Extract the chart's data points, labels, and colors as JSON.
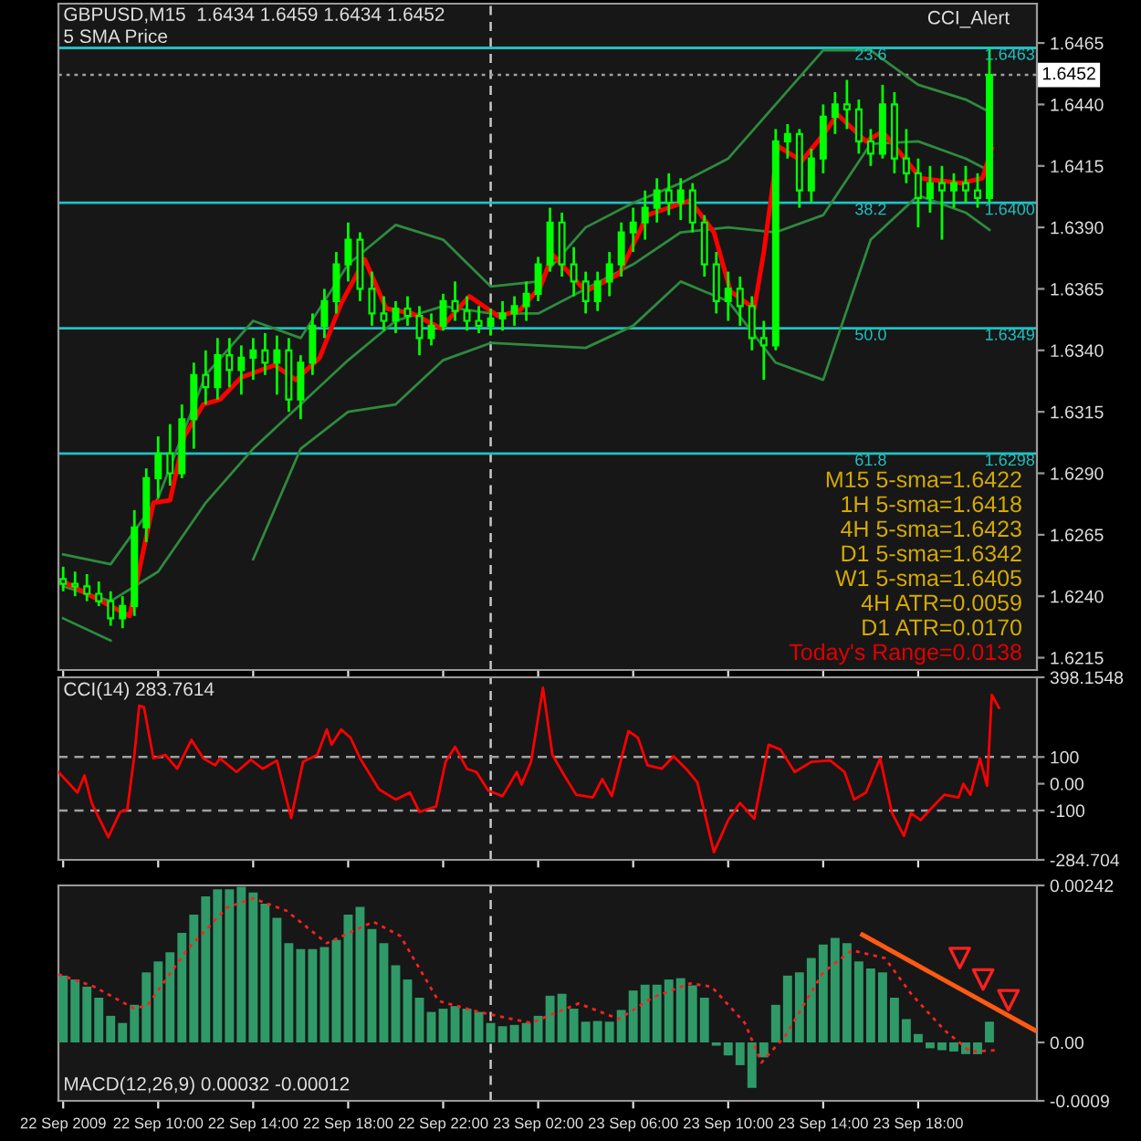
{
  "chart_data": [
    {
      "type": "candlestick",
      "title": "GBPUSD,M15  1.6434 1.6459 1.6434 1.6452",
      "subtitle": "5 SMA Price",
      "color": "#00ff00",
      "annotations": [
        "CCI_Alert",
        "M15 5-sma=1.6422",
        "1H 5-sma=1.6418",
        "4H 5-sma=1.6423",
        "D1 5-sma=1.6342",
        "W1 5-sma=1.6405",
        "4H ATR=0.0059",
        "D1 ATR=0.0170",
        "Today's Range=0.0138",
        {
          "text": "23.6",
          "x": "2009-09-23T16:00",
          "y": 1.6463
        },
        {
          "text": "38.2",
          "x": "2009-09-23T16:00",
          "y": 1.64
        },
        {
          "text": "50.0",
          "x": "2009-09-23T16:00",
          "y": 1.6349
        },
        {
          "text": "61.8",
          "x": "2009-09-23T16:00",
          "y": 1.6298
        }
      ],
      "x": [
        "2009-09-22T06:00",
        "2009-09-22T06:30",
        "2009-09-22T07:00",
        "2009-09-22T07:30",
        "2009-09-22T08:00",
        "2009-09-22T08:30",
        "2009-09-22T09:00",
        "2009-09-22T09:30",
        "2009-09-22T10:00",
        "2009-09-22T10:30",
        "2009-09-22T11:00",
        "2009-09-22T11:30",
        "2009-09-22T12:00",
        "2009-09-22T12:30",
        "2009-09-22T13:00",
        "2009-09-22T13:30",
        "2009-09-22T14:00",
        "2009-09-22T14:30",
        "2009-09-22T15:00",
        "2009-09-22T15:30",
        "2009-09-22T16:00",
        "2009-09-22T16:30",
        "2009-09-22T17:00",
        "2009-09-22T17:30",
        "2009-09-22T18:00",
        "2009-09-22T18:30",
        "2009-09-22T19:00",
        "2009-09-22T19:30",
        "2009-09-22T20:00",
        "2009-09-22T20:30",
        "2009-09-22T21:00",
        "2009-09-22T21:30",
        "2009-09-22T22:00",
        "2009-09-22T22:30",
        "2009-09-22T23:00",
        "2009-09-22T23:30",
        "2009-09-23T00:00",
        "2009-09-23T00:30",
        "2009-09-23T01:00",
        "2009-09-23T01:30",
        "2009-09-23T02:00",
        "2009-09-23T02:30",
        "2009-09-23T03:00",
        "2009-09-23T03:30",
        "2009-09-23T04:00",
        "2009-09-23T04:30",
        "2009-09-23T05:00",
        "2009-09-23T05:30",
        "2009-09-23T06:00",
        "2009-09-23T06:30",
        "2009-09-23T07:00",
        "2009-09-23T07:30",
        "2009-09-23T08:00",
        "2009-09-23T08:30",
        "2009-09-23T09:00",
        "2009-09-23T09:30",
        "2009-09-23T10:00",
        "2009-09-23T10:30",
        "2009-09-23T11:00",
        "2009-09-23T11:30",
        "2009-09-23T12:00",
        "2009-09-23T12:30",
        "2009-09-23T13:00",
        "2009-09-23T13:30",
        "2009-09-23T14:00",
        "2009-09-23T14:30",
        "2009-09-23T15:00",
        "2009-09-23T15:30",
        "2009-09-23T16:00",
        "2009-09-23T16:30",
        "2009-09-23T17:00",
        "2009-09-23T17:30",
        "2009-09-23T18:00",
        "2009-09-23T18:30",
        "2009-09-23T19:00",
        "2009-09-23T19:30",
        "2009-09-23T20:00",
        "2009-09-23T20:30",
        "2009-09-23T21:00"
      ],
      "ohlc": [
        [
          1.6247,
          1.6252,
          1.6242,
          1.6245
        ],
        [
          1.6245,
          1.625,
          1.624,
          1.6244
        ],
        [
          1.6244,
          1.6249,
          1.6238,
          1.6241
        ],
        [
          1.6241,
          1.6246,
          1.6236,
          1.6238
        ],
        [
          1.6238,
          1.6242,
          1.6228,
          1.6231
        ],
        [
          1.6231,
          1.624,
          1.6227,
          1.6236
        ],
        [
          1.6236,
          1.6275,
          1.6232,
          1.6268
        ],
        [
          1.6268,
          1.6292,
          1.6262,
          1.6288
        ],
        [
          1.6288,
          1.6305,
          1.628,
          1.6298
        ],
        [
          1.6298,
          1.631,
          1.6285,
          1.629
        ],
        [
          1.629,
          1.6318,
          1.6288,
          1.6312
        ],
        [
          1.6312,
          1.6335,
          1.63,
          1.633
        ],
        [
          1.633,
          1.634,
          1.6318,
          1.6325
        ],
        [
          1.6325,
          1.6345,
          1.632,
          1.6338
        ],
        [
          1.6338,
          1.6345,
          1.6325,
          1.6332
        ],
        [
          1.6332,
          1.6342,
          1.6322,
          1.6337
        ],
        [
          1.6337,
          1.6345,
          1.6328,
          1.634
        ],
        [
          1.634,
          1.6347,
          1.633,
          1.6335
        ],
        [
          1.6335,
          1.6346,
          1.6322,
          1.634
        ],
        [
          1.634,
          1.6345,
          1.6315,
          1.632
        ],
        [
          1.632,
          1.6338,
          1.6312,
          1.6335
        ],
        [
          1.6335,
          1.6355,
          1.633,
          1.635
        ],
        [
          1.635,
          1.6365,
          1.6345,
          1.636
        ],
        [
          1.636,
          1.638,
          1.6355,
          1.6375
        ],
        [
          1.6375,
          1.6392,
          1.6368,
          1.6385
        ],
        [
          1.6385,
          1.6388,
          1.636,
          1.6365
        ],
        [
          1.6365,
          1.6372,
          1.635,
          1.6355
        ],
        [
          1.6355,
          1.6362,
          1.6348,
          1.6352
        ],
        [
          1.6352,
          1.636,
          1.6347,
          1.6357
        ],
        [
          1.6357,
          1.6362,
          1.635,
          1.6354
        ],
        [
          1.6354,
          1.6358,
          1.6338,
          1.6345
        ],
        [
          1.6345,
          1.6355,
          1.6342,
          1.635
        ],
        [
          1.635,
          1.6363,
          1.6348,
          1.636
        ],
        [
          1.636,
          1.6368,
          1.6352,
          1.6356
        ],
        [
          1.6356,
          1.6362,
          1.6348,
          1.6352
        ],
        [
          1.6352,
          1.6358,
          1.6347,
          1.635
        ],
        [
          1.635,
          1.6357,
          1.6346,
          1.6353
        ],
        [
          1.6353,
          1.636,
          1.6348,
          1.6355
        ],
        [
          1.6355,
          1.6362,
          1.635,
          1.6358
        ],
        [
          1.6358,
          1.6368,
          1.6352,
          1.6363
        ],
        [
          1.6363,
          1.6378,
          1.636,
          1.6375
        ],
        [
          1.6375,
          1.6398,
          1.6372,
          1.6392
        ],
        [
          1.6392,
          1.6396,
          1.637,
          1.6375
        ],
        [
          1.6375,
          1.6382,
          1.6362,
          1.6368
        ],
        [
          1.6368,
          1.6372,
          1.6355,
          1.636
        ],
        [
          1.636,
          1.6372,
          1.6356,
          1.6368
        ],
        [
          1.6368,
          1.638,
          1.6362,
          1.6375
        ],
        [
          1.6375,
          1.6392,
          1.637,
          1.6388
        ],
        [
          1.6388,
          1.6398,
          1.638,
          1.6392
        ],
        [
          1.6392,
          1.6405,
          1.6385,
          1.6398
        ],
        [
          1.6398,
          1.641,
          1.6392,
          1.6405
        ],
        [
          1.6405,
          1.6412,
          1.6395,
          1.64
        ],
        [
          1.64,
          1.641,
          1.6393,
          1.6405
        ],
        [
          1.6405,
          1.6408,
          1.6388,
          1.6392
        ],
        [
          1.6392,
          1.6395,
          1.637,
          1.6375
        ],
        [
          1.6375,
          1.638,
          1.6355,
          1.636
        ],
        [
          1.636,
          1.6372,
          1.6352,
          1.6365
        ],
        [
          1.6365,
          1.637,
          1.635,
          1.6358
        ],
        [
          1.6358,
          1.6362,
          1.634,
          1.6345
        ],
        [
          1.6345,
          1.6352,
          1.6328,
          1.6342
        ],
        [
          1.6342,
          1.643,
          1.634,
          1.6425
        ],
        [
          1.6425,
          1.6432,
          1.6418,
          1.6428
        ],
        [
          1.6428,
          1.643,
          1.6398,
          1.6405
        ],
        [
          1.6405,
          1.6422,
          1.64,
          1.6418
        ],
        [
          1.6418,
          1.644,
          1.6412,
          1.6435
        ],
        [
          1.6435,
          1.6445,
          1.6428,
          1.644
        ],
        [
          1.644,
          1.645,
          1.643,
          1.6438
        ],
        [
          1.6438,
          1.6442,
          1.642,
          1.6425
        ],
        [
          1.6425,
          1.643,
          1.6415,
          1.642
        ],
        [
          1.642,
          1.6448,
          1.6418,
          1.644
        ],
        [
          1.644,
          1.6445,
          1.6412,
          1.6418
        ],
        [
          1.6418,
          1.643,
          1.6408,
          1.6412
        ],
        [
          1.6412,
          1.6418,
          1.639,
          1.6402
        ],
        [
          1.6402,
          1.6415,
          1.6396,
          1.6408
        ],
        [
          1.6408,
          1.6415,
          1.6385,
          1.6405
        ],
        [
          1.6405,
          1.6412,
          1.6398,
          1.6408
        ],
        [
          1.6408,
          1.6415,
          1.64,
          1.6405
        ],
        [
          1.6405,
          1.6412,
          1.6398,
          1.6402
        ],
        [
          1.6402,
          1.6463,
          1.64,
          1.6452
        ]
      ],
      "series": [
        {
          "type": "line",
          "color": "#2e8b3e",
          "x": [
            "2009-09-22T06:00",
            "2009-09-22T08:00",
            "2009-09-22T10:00",
            "2009-09-22T12:00",
            "2009-09-22T14:00",
            "2009-09-22T16:00",
            "2009-09-22T18:00",
            "2009-09-22T20:00",
            "2009-09-22T22:00",
            "2009-09-23T00:00",
            "2009-09-23T02:00",
            "2009-09-23T04:00",
            "2009-09-23T06:00",
            "2009-09-23T08:00",
            "2009-09-23T10:00",
            "2009-09-23T12:00",
            "2009-09-23T14:00",
            "2009-09-23T16:00",
            "2009-09-23T18:00",
            "2009-09-23T20:00",
            "2009-09-23T21:00"
          ],
          "values": [
            1.6257,
            1.6253,
            1.628,
            1.633,
            1.6352,
            1.6345,
            1.6375,
            1.6391,
            1.6385,
            1.6366,
            1.6368,
            1.639,
            1.64,
            1.6408,
            1.6418,
            1.644,
            1.6462,
            1.6462,
            1.6448,
            1.6442,
            1.6437
          ]
        },
        {
          "type": "line",
          "color": "#2e8b3e",
          "x": [
            "2009-09-22T06:00",
            "2009-09-22T08:00",
            "2009-09-22T10:00",
            "2009-09-22T12:00",
            "2009-09-22T14:00",
            "2009-09-22T16:00",
            "2009-09-22T18:00",
            "2009-09-22T20:00",
            "2009-09-22T22:00",
            "2009-09-23T00:00",
            "2009-09-23T02:00",
            "2009-09-23T04:00",
            "2009-09-23T06:00",
            "2009-09-23T08:00",
            "2009-09-23T10:00",
            "2009-09-23T12:00",
            "2009-09-23T14:00",
            "2009-09-23T16:00",
            "2009-09-23T18:00",
            "2009-09-23T20:00",
            "2009-09-23T21:00"
          ],
          "values": [
            1.6244,
            1.6238,
            1.625,
            1.6278,
            1.63,
            1.6318,
            1.6336,
            1.6352,
            1.6358,
            1.6355,
            1.6355,
            1.6365,
            1.6375,
            1.6388,
            1.639,
            1.6388,
            1.6395,
            1.6424,
            1.6425,
            1.6418,
            1.6413
          ]
        },
        {
          "type": "line",
          "color": "#2e8b3e",
          "x": [
            "2009-09-22T06:00",
            "2009-09-22T08:00",
            "2009-09-22T10:00",
            "2009-09-22T12:00",
            "2009-09-22T14:00",
            "2009-09-22T16:00",
            "2009-09-22T18:00",
            "2009-09-22T20:00",
            "2009-09-22T22:00",
            "2009-09-23T00:00",
            "2009-09-23T02:00",
            "2009-09-23T04:00",
            "2009-09-23T06:00",
            "2009-09-23T08:00",
            "2009-09-23T10:00",
            "2009-09-23T12:00",
            "2009-09-23T14:00",
            "2009-09-23T16:00",
            "2009-09-23T18:00",
            "2009-09-23T20:00",
            "2009-09-23T21:00"
          ],
          "values": [
            1.6231,
            1.6222,
            null,
            null,
            1.6255,
            1.63,
            1.6315,
            1.6318,
            1.6336,
            1.6343,
            1.6342,
            1.6341,
            1.635,
            1.6368,
            1.636,
            1.6335,
            1.6328,
            1.6385,
            1.6403,
            1.6396,
            1.6389
          ]
        },
        {
          "type": "line",
          "color": "#ff0000",
          "x": [
            "2009-09-22T06:00",
            "2009-09-22T08:48",
            "2009-09-22T09:48",
            "2009-09-22T10:30",
            "2009-09-22T11:06",
            "2009-09-22T11:54",
            "2009-09-22T12:36",
            "2009-09-22T13:30",
            "2009-09-22T14:54",
            "2009-09-22T15:48",
            "2009-09-22T16:48",
            "2009-09-22T17:42",
            "2009-09-22T18:42",
            "2009-09-22T19:36",
            "2009-09-22T20:42",
            "2009-09-22T21:54",
            "2009-09-22T23:06",
            "2009-09-23T00:18",
            "2009-09-23T01:12",
            "2009-09-23T02:06",
            "2009-09-23T02:36",
            "2009-09-23T04:00",
            "2009-09-23T05:24",
            "2009-09-23T06:36",
            "2009-09-23T08:24",
            "2009-09-23T09:24",
            "2009-09-23T10:06",
            "2009-09-23T11:06",
            "2009-09-23T11:30",
            "2009-09-23T12:06",
            "2009-09-23T13:06",
            "2009-09-23T14:06",
            "2009-09-23T14:36",
            "2009-09-23T15:48",
            "2009-09-23T16:30",
            "2009-09-23T17:36",
            "2009-09-23T18:06",
            "2009-09-23T19:48",
            "2009-09-23T20:42",
            "2009-09-23T21:06"
          ],
          "values": [
            1.6246,
            1.6232,
            1.6278,
            1.6279,
            1.6305,
            1.6318,
            1.632,
            1.6329,
            1.6334,
            1.6328,
            1.6337,
            1.6359,
            1.6377,
            1.6357,
            1.6355,
            1.6349,
            1.6362,
            1.6354,
            1.6356,
            1.6366,
            1.6379,
            1.6364,
            1.6371,
            1.6395,
            1.6401,
            1.6388,
            1.6364,
            1.6357,
            1.638,
            1.6423,
            1.6417,
            1.6429,
            1.6436,
            1.6425,
            1.6429,
            1.6416,
            1.641,
            1.6408,
            1.641,
            1.6422
          ]
        }
      ],
      "ref_lines": [
        {
          "axis": "x",
          "value": "2009-09-23T00:00",
          "line_style": "dashed",
          "color": "#c8c8c8"
        },
        {
          "axis": "y",
          "value": 1.6463,
          "label": "1.6463",
          "color": "#20c0c0"
        },
        {
          "axis": "y",
          "value": 1.64,
          "label": "1.6400",
          "color": "#20c0c0"
        },
        {
          "axis": "y",
          "value": 1.6349,
          "label": "1.6349",
          "color": "#20c0c0"
        },
        {
          "axis": "y",
          "value": 1.6298,
          "label": "1.6298",
          "color": "#20c0c0"
        },
        {
          "axis": "y",
          "value": 1.6452,
          "label": "1.6452",
          "line_style": "dotted",
          "color": "#a0a0a0"
        }
      ],
      "xlim": [
        "2009-09-22T05:48",
        "2009-09-23T23:00"
      ],
      "xticks": [
        "2009-09-22T06:00",
        "2009-09-22T10:00",
        "2009-09-22T14:00",
        "2009-09-22T18:00",
        "2009-09-22T22:00",
        "2009-09-23T02:00",
        "2009-09-23T06:00",
        "2009-09-23T10:00",
        "2009-09-23T14:00",
        "2009-09-23T18:00"
      ],
      "ylim": [
        1.621,
        1.6481
      ],
      "yticks": [
        {
          "value": 1.6215,
          "label": "1.6215"
        },
        {
          "value": 1.624,
          "label": "1.6240"
        },
        {
          "value": 1.6265,
          "label": "1.6265"
        },
        {
          "value": 1.629,
          "label": "1.6290"
        },
        {
          "value": 1.6315,
          "label": "1.6315"
        },
        {
          "value": 1.634,
          "label": "1.6340"
        },
        {
          "value": 1.6365,
          "label": "1.6365"
        },
        {
          "value": 1.639,
          "label": "1.6390"
        },
        {
          "value": 1.6415,
          "label": "1.6415"
        },
        {
          "value": 1.644,
          "label": "1.6440"
        },
        {
          "value": 1.6465,
          "label": "1.6465"
        }
      ],
      "tick_labels": "y"
    },
    {
      "type": "line",
      "title": "CCI(14) 283.7614",
      "color": "#ff0000",
      "x": [
        "2009-09-22T05:48",
        "2009-09-22T06:36",
        "2009-09-22T06:54",
        "2009-09-22T07:12",
        "2009-09-22T07:54",
        "2009-09-22T08:24",
        "2009-09-22T08:42",
        "2009-09-22T09:00",
        "2009-09-22T09:12",
        "2009-09-22T09:24",
        "2009-09-22T09:48",
        "2009-09-22T10:18",
        "2009-09-22T10:48",
        "2009-09-22T11:24",
        "2009-09-22T11:54",
        "2009-09-22T12:24",
        "2009-09-22T12:36",
        "2009-09-22T13:18",
        "2009-09-22T13:54",
        "2009-09-22T14:24",
        "2009-09-22T15:00",
        "2009-09-22T15:36",
        "2009-09-22T16:06",
        "2009-09-22T16:42",
        "2009-09-22T17:06",
        "2009-09-22T17:18",
        "2009-09-22T17:42",
        "2009-09-22T18:06",
        "2009-09-22T18:30",
        "2009-09-22T19:18",
        "2009-09-22T20:00",
        "2009-09-22T20:36",
        "2009-09-22T21:00",
        "2009-09-22T21:42",
        "2009-09-22T22:06",
        "2009-09-22T22:30",
        "2009-09-22T23:00",
        "2009-09-22T23:24",
        "2009-09-22T23:54",
        "2009-09-23T00:30",
        "2009-09-23T01:06",
        "2009-09-23T01:18",
        "2009-09-23T01:42",
        "2009-09-23T02:12",
        "2009-09-23T02:36",
        "2009-09-23T03:06",
        "2009-09-23T03:36",
        "2009-09-23T04:18",
        "2009-09-23T04:42",
        "2009-09-23T05:06",
        "2009-09-23T05:48",
        "2009-09-23T06:12",
        "2009-09-23T06:36",
        "2009-09-23T07:12",
        "2009-09-23T07:42",
        "2009-09-23T08:18",
        "2009-09-23T08:42",
        "2009-09-23T09:24",
        "2009-09-23T10:00",
        "2009-09-23T10:30",
        "2009-09-23T11:06",
        "2009-09-23T11:42",
        "2009-09-23T12:12",
        "2009-09-23T12:48",
        "2009-09-23T13:30",
        "2009-09-23T14:18",
        "2009-09-23T14:54",
        "2009-09-23T15:18",
        "2009-09-23T15:48",
        "2009-09-23T16:24",
        "2009-09-23T16:54",
        "2009-09-23T17:24",
        "2009-09-23T17:42",
        "2009-09-23T18:06",
        "2009-09-23T18:30",
        "2009-09-23T19:06",
        "2009-09-23T19:42",
        "2009-09-23T19:54",
        "2009-09-23T20:12",
        "2009-09-23T20:36",
        "2009-09-23T20:54",
        "2009-09-23T21:06",
        "2009-09-23T21:24"
      ],
      "values": [
        44,
        -33,
        31,
        -72,
        -200,
        -105,
        -97,
        108,
        292,
        287,
        95,
        108,
        56,
        164,
        95,
        69,
        95,
        44,
        90,
        56,
        87,
        -128,
        82,
        108,
        203,
        146,
        203,
        172,
        95,
        -21,
        -59,
        -33,
        -105,
        -85,
        82,
        138,
        56,
        44,
        -26,
        -46,
        44,
        -3,
        82,
        359,
        108,
        31,
        -41,
        -51,
        18,
        -46,
        197,
        172,
        69,
        56,
        103,
        49,
        5,
        -256,
        -136,
        -72,
        -131,
        146,
        128,
        44,
        82,
        87,
        44,
        -59,
        -33,
        95,
        -110,
        -195,
        -110,
        -136,
        -97,
        -41,
        -51,
        0,
        -41,
        95,
        -8,
        333,
        284
      ],
      "ref_lines": [
        {
          "axis": "x",
          "value": "2009-09-23T00:00",
          "line_style": "dashed",
          "color": "#c8c8c8"
        },
        {
          "axis": "y",
          "value": 100,
          "line_style": "dashed",
          "color": "#a0a0a0"
        },
        {
          "axis": "y",
          "value": -100,
          "line_style": "dashed",
          "color": "#a0a0a0"
        }
      ],
      "xlim": [
        "2009-09-22T05:48",
        "2009-09-23T23:00"
      ],
      "xticks": [
        "2009-09-22T06:00",
        "2009-09-22T10:00",
        "2009-09-22T14:00",
        "2009-09-22T18:00",
        "2009-09-22T22:00",
        "2009-09-23T02:00",
        "2009-09-23T06:00",
        "2009-09-23T10:00",
        "2009-09-23T14:00",
        "2009-09-23T18:00"
      ],
      "ylim": [
        -284.704,
        398.1548
      ],
      "yticks": [
        398.1548,
        100,
        {
          "value": 0,
          "label": "0.00"
        },
        -100,
        -284.704
      ],
      "tick_labels": "y"
    },
    {
      "type": "bar",
      "title": "MACD(12,26,9) 0.00032 -0.00012",
      "series": [
        {
          "type": "bar",
          "color": "#2f9a68",
          "x": [
            "2009-09-22T06:00",
            "2009-09-22T06:30",
            "2009-09-22T07:00",
            "2009-09-22T07:30",
            "2009-09-22T08:00",
            "2009-09-22T08:30",
            "2009-09-22T09:00",
            "2009-09-22T09:30",
            "2009-09-22T10:00",
            "2009-09-22T10:30",
            "2009-09-22T11:00",
            "2009-09-22T11:30",
            "2009-09-22T12:00",
            "2009-09-22T12:30",
            "2009-09-22T13:00",
            "2009-09-22T13:30",
            "2009-09-22T14:00",
            "2009-09-22T14:30",
            "2009-09-22T15:00",
            "2009-09-22T15:30",
            "2009-09-22T16:00",
            "2009-09-22T16:30",
            "2009-09-22T17:00",
            "2009-09-22T17:30",
            "2009-09-22T18:00",
            "2009-09-22T18:30",
            "2009-09-22T19:00",
            "2009-09-22T19:30",
            "2009-09-22T20:00",
            "2009-09-22T20:30",
            "2009-09-22T21:00",
            "2009-09-22T21:30",
            "2009-09-22T22:00",
            "2009-09-22T22:30",
            "2009-09-22T23:00",
            "2009-09-22T23:30",
            "2009-09-23T00:00",
            "2009-09-23T00:30",
            "2009-09-23T01:00",
            "2009-09-23T01:30",
            "2009-09-23T02:00",
            "2009-09-23T02:30",
            "2009-09-23T03:00",
            "2009-09-23T03:30",
            "2009-09-23T04:00",
            "2009-09-23T04:30",
            "2009-09-23T05:00",
            "2009-09-23T05:30",
            "2009-09-23T06:00",
            "2009-09-23T06:30",
            "2009-09-23T07:00",
            "2009-09-23T07:30",
            "2009-09-23T08:00",
            "2009-09-23T08:30",
            "2009-09-23T09:00",
            "2009-09-23T09:30",
            "2009-09-23T10:00",
            "2009-09-23T10:30",
            "2009-09-23T11:00",
            "2009-09-23T11:30",
            "2009-09-23T12:00",
            "2009-09-23T12:30",
            "2009-09-23T13:00",
            "2009-09-23T13:30",
            "2009-09-23T14:00",
            "2009-09-23T14:30",
            "2009-09-23T15:00",
            "2009-09-23T15:30",
            "2009-09-23T16:00",
            "2009-09-23T16:30",
            "2009-09-23T17:00",
            "2009-09-23T17:30",
            "2009-09-23T18:00",
            "2009-09-23T18:30",
            "2009-09-23T19:00",
            "2009-09-23T19:30",
            "2009-09-23T20:00",
            "2009-09-23T20:30",
            "2009-09-23T21:00"
          ],
          "values": [
            0.00103,
            0.00097,
            0.00086,
            0.00069,
            0.00041,
            0.0003,
            0.00058,
            0.00108,
            0.00125,
            0.00139,
            0.00169,
            0.00197,
            0.00225,
            0.00236,
            0.00236,
            0.0024,
            0.00231,
            0.00214,
            0.00192,
            0.00153,
            0.00144,
            0.00144,
            0.00147,
            0.00158,
            0.00197,
            0.00209,
            0.00175,
            0.00153,
            0.00119,
            0.00097,
            0.00069,
            0.00047,
            0.00052,
            0.00056,
            0.00052,
            0.00047,
            0.0003,
            0.00025,
            0.00027,
            0.0003,
            0.00041,
            0.00072,
            0.00075,
            0.00052,
            0.00032,
            0.00033,
            0.00032,
            0.0005,
            0.0008,
            0.00089,
            0.00089,
            0.00097,
            0.00099,
            0.00088,
            0.00069,
            -5e-05,
            -0.0002,
            -0.00035,
            -0.0007,
            -0.00023,
            0.00058,
            0.00103,
            0.00108,
            0.0013,
            0.00151,
            0.00161,
            0.00153,
            0.00125,
            0.00114,
            0.00108,
            0.00069,
            0.00036,
            0.00013,
            -9e-05,
            -0.00012,
            -0.00014,
            -0.00018,
            -0.00018,
            0.00032
          ]
        },
        {
          "type": "line",
          "color": "#ff2020",
          "line_style": "dotted",
          "x": [
            "2009-09-22T05:48",
            "2009-09-22T07:18",
            "2009-09-22T09:00",
            "2009-09-22T09:34",
            "2009-09-22T11:12",
            "2009-09-22T12:54",
            "2009-09-22T14:00",
            "2009-09-22T15:24",
            "2009-09-22T17:06",
            "2009-09-22T19:03",
            "2009-09-22T20:12",
            "2009-09-22T21:48",
            "2009-09-22T23:30",
            "2009-09-23T01:42",
            "2009-09-23T03:42",
            "2009-09-23T05:24",
            "2009-09-23T06:48",
            "2009-09-23T08:24",
            "2009-09-23T09:18",
            "2009-09-23T10:42",
            "2009-09-23T11:24",
            "2009-09-23T12:24",
            "2009-09-23T14:00",
            "2009-09-23T15:12",
            "2009-09-23T16:36",
            "2009-09-23T17:42",
            "2009-09-23T19:06",
            "2009-09-23T20:12",
            "2009-09-23T21:18"
          ],
          "values": [
            0.00105,
            0.00086,
            0.00052,
            0.00058,
            0.00142,
            0.00208,
            0.00222,
            0.00203,
            0.00153,
            0.00186,
            0.00164,
            0.00064,
            0.00047,
            0.0003,
            0.0006,
            0.00036,
            0.00069,
            0.00091,
            0.00086,
            0.0003,
            -0.00031,
            0.0001,
            0.00108,
            0.00142,
            0.0013,
            0.00075,
            0.00019,
            -0.00014,
            -0.00012
          ]
        },
        {
          "type": "line",
          "color": "#ff5a14",
          "x": [
            "2009-09-23T15:39",
            "2009-09-23T22:54"
          ],
          "values": [
            0.00166,
            0.00019
          ]
        },
        {
          "type": "scatter",
          "color": "#ff2020",
          "marker": "triangle",
          "x": [
            "2009-09-23T19:45",
            "2009-09-23T20:44",
            "2009-09-23T21:48"
          ],
          "values": [
            0.0013,
            0.00097,
            0.00065
          ]
        }
      ],
      "ref_lines": [
        {
          "axis": "x",
          "value": "2009-09-23T00:00",
          "line_style": "dashed",
          "color": "#c8c8c8"
        }
      ],
      "xlim": [
        "2009-09-22T05:48",
        "2009-09-23T23:00"
      ],
      "xticks": [
        {
          "value": "2009-09-22T06:00",
          "label": "22 Sep 2009"
        },
        {
          "value": "2009-09-22T10:00",
          "label": "22 Sep 10:00"
        },
        {
          "value": "2009-09-22T14:00",
          "label": "22 Sep 14:00"
        },
        {
          "value": "2009-09-22T18:00",
          "label": "22 Sep 18:00"
        },
        {
          "value": "2009-09-22T22:00",
          "label": "22 Sep 22:00"
        },
        {
          "value": "2009-09-23T02:00",
          "label": "23 Sep 02:00"
        },
        {
          "value": "2009-09-23T06:00",
          "label": "23 Sep 06:00"
        },
        {
          "value": "2009-09-23T10:00",
          "label": "23 Sep 10:00"
        },
        {
          "value": "2009-09-23T14:00",
          "label": "23 Sep 14:00"
        },
        {
          "value": "2009-09-23T18:00",
          "label": "23 Sep 18:00"
        }
      ],
      "ylim": [
        -0.0009,
        0.00242
      ],
      "yticks": [
        0.00242,
        {
          "value": 0,
          "label": "0.00"
        },
        -0.0009
      ]
    }
  ]
}
